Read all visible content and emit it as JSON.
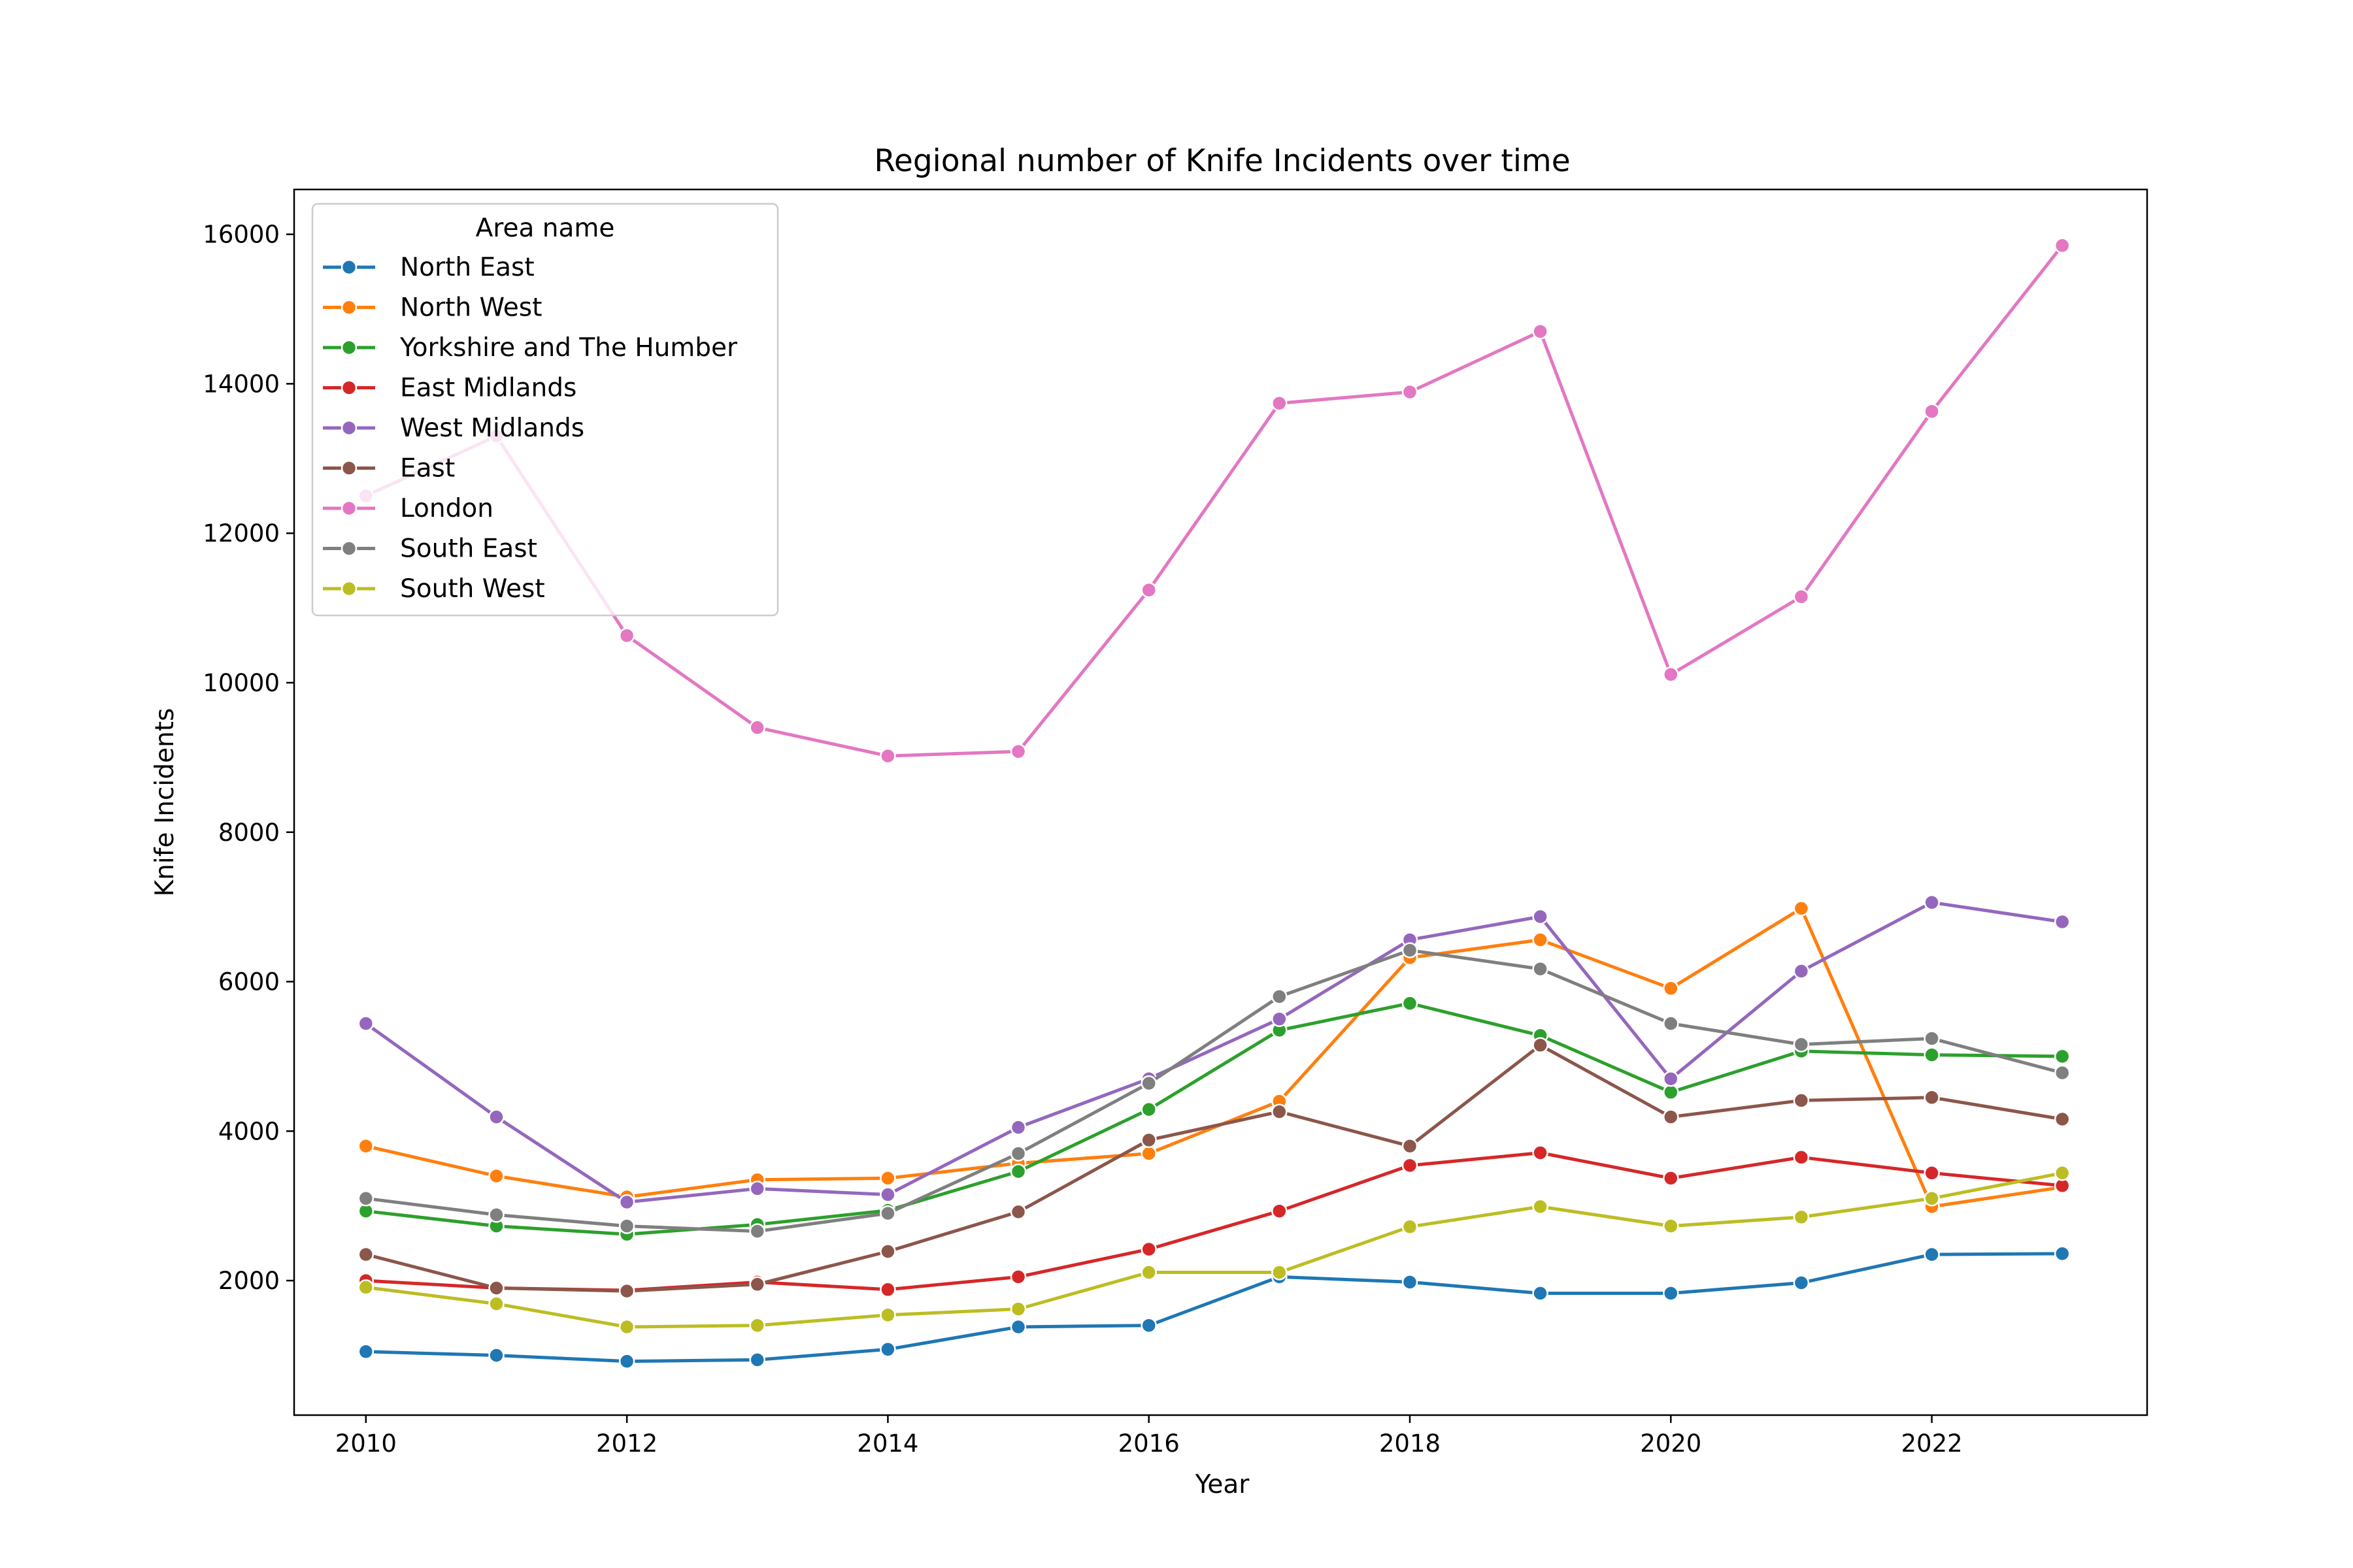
{
  "chart_data": {
    "type": "line",
    "title": "Regional number of Knife Incidents over time",
    "xlabel": "Year",
    "ylabel": "Knife Incidents",
    "x": [
      2010,
      2011,
      2012,
      2013,
      2014,
      2015,
      2016,
      2017,
      2018,
      2019,
      2020,
      2021,
      2022,
      2023
    ],
    "xlim": [
      2009.45,
      2023.65
    ],
    "ylim": [
      200,
      16600
    ],
    "xticks": [
      2010,
      2012,
      2014,
      2016,
      2018,
      2020,
      2022
    ],
    "yticks": [
      2000,
      4000,
      6000,
      8000,
      10000,
      12000,
      14000,
      16000
    ],
    "xtick_labels": [
      "2010",
      "2012",
      "2014",
      "2016",
      "2018",
      "2020",
      "2022"
    ],
    "ytick_labels": [
      "2000",
      "4000",
      "6000",
      "8000",
      "10000",
      "12000",
      "14000",
      "16000"
    ],
    "grid": false,
    "legend": {
      "title": "Area name",
      "placement": "top-left"
    },
    "series": [
      {
        "name": "North East",
        "color": "#1f77b4",
        "values": [
          1050,
          1000,
          920,
          940,
          1080,
          1380,
          1400,
          2050,
          1980,
          1830,
          1830,
          1970,
          2350,
          2360
        ]
      },
      {
        "name": "North West",
        "color": "#ff7f0e",
        "values": [
          3800,
          3400,
          3120,
          3350,
          3370,
          3570,
          3700,
          4400,
          6320,
          6560,
          5910,
          6980,
          2990,
          3250
        ]
      },
      {
        "name": "Yorkshire and The Humber",
        "color": "#2ca02c",
        "values": [
          2930,
          2730,
          2620,
          2750,
          2940,
          3460,
          4290,
          5350,
          5710,
          5280,
          4520,
          5070,
          5020,
          5000
        ]
      },
      {
        "name": "East Midlands",
        "color": "#d62728",
        "values": [
          2000,
          1900,
          1870,
          1980,
          1880,
          2050,
          2420,
          2930,
          3540,
          3710,
          3370,
          3650,
          3440,
          3270
        ]
      },
      {
        "name": "West Midlands",
        "color": "#9467bd",
        "values": [
          5440,
          4190,
          3050,
          3230,
          3150,
          4050,
          4700,
          5500,
          6560,
          6870,
          4700,
          6140,
          7060,
          6800
        ]
      },
      {
        "name": "East",
        "color": "#8c564b",
        "values": [
          2350,
          1900,
          1860,
          1950,
          2390,
          2920,
          3880,
          4260,
          3800,
          5150,
          4190,
          4410,
          4450,
          4160
        ]
      },
      {
        "name": "London",
        "color": "#e377c2",
        "values": [
          12500,
          13300,
          10630,
          9400,
          9020,
          9080,
          11240,
          13740,
          13890,
          14700,
          10110,
          11150,
          13630,
          15850
        ]
      },
      {
        "name": "South East",
        "color": "#7f7f7f",
        "values": [
          3100,
          2880,
          2730,
          2660,
          2900,
          3700,
          4640,
          5800,
          6420,
          6170,
          5440,
          5160,
          5240,
          4780
        ]
      },
      {
        "name": "South West",
        "color": "#bcbd22",
        "values": [
          1910,
          1690,
          1380,
          1400,
          1540,
          1620,
          2110,
          2110,
          2720,
          2990,
          2730,
          2850,
          3100,
          3440
        ]
      }
    ]
  }
}
